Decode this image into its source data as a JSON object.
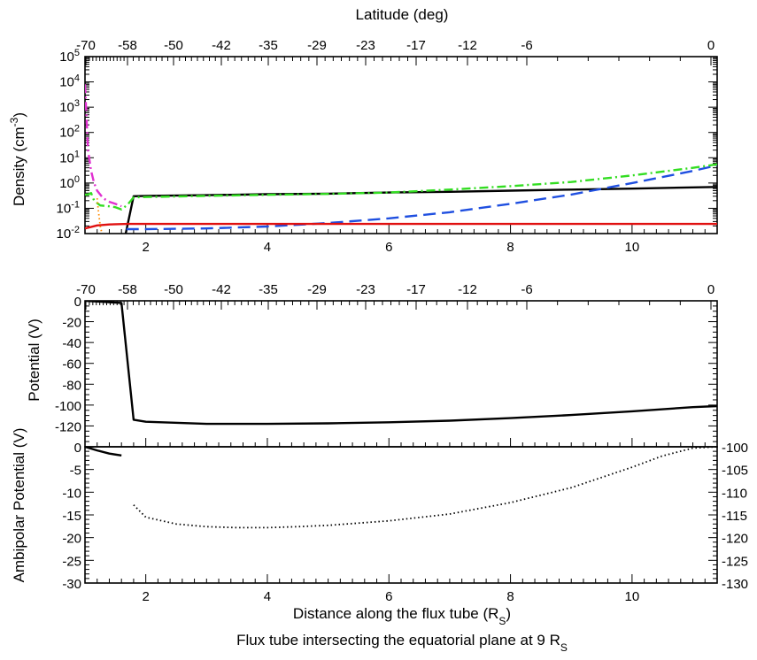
{
  "figure": {
    "top_axis_label": "Latitude (deg)",
    "bottom_axis_label": "Distance along the flux tube (R",
    "bottom_axis_label_sub": "S",
    "bottom_axis_label_end": ")",
    "caption": "Flux tube intersecting the equatorial plane at 9 R",
    "caption_sub": "S"
  },
  "chart_data": [
    {
      "type": "line",
      "panel": "density",
      "ylabel": "Density (cm",
      "ylabel_sup": "-3",
      "ylabel_end": ")",
      "yscale": "log",
      "xlim": [
        1.0,
        11.4
      ],
      "ylim": [
        0.01,
        100000
      ],
      "x_ticks": [
        "2",
        "4",
        "6",
        "8",
        "10"
      ],
      "y_ticks": [
        {
          "base": "10",
          "exp": "-2"
        },
        {
          "base": "10",
          "exp": "-1"
        },
        {
          "base": "10",
          "exp": "0"
        },
        {
          "base": "10",
          "exp": "1"
        },
        {
          "base": "10",
          "exp": "2"
        },
        {
          "base": "10",
          "exp": "3"
        },
        {
          "base": "10",
          "exp": "4"
        },
        {
          "base": "10",
          "exp": "5"
        }
      ],
      "top_ticks": [
        "-70",
        "-58",
        "-50",
        "-42",
        "-35",
        "-29",
        "-23",
        "-17",
        "-12",
        "-6",
        "0"
      ],
      "series": [
        {
          "color": "#000000",
          "dash": "solid",
          "x": [
            1.67,
            1.8,
            2.0,
            3.0,
            4.0,
            5.0,
            6.0,
            7.0,
            8.0,
            9.0,
            10.0,
            11.0,
            11.4
          ],
          "y": [
            0.01,
            0.3,
            0.31,
            0.33,
            0.36,
            0.38,
            0.42,
            0.45,
            0.5,
            0.55,
            0.6,
            0.67,
            0.7
          ]
        },
        {
          "color": "#1f4fe0",
          "dash": "dashed",
          "x": [
            1.68,
            1.8,
            2.0,
            3.0,
            4.0,
            5.0,
            6.0,
            7.0,
            8.0,
            9.0,
            10.0,
            11.0,
            11.4
          ],
          "y": [
            0.015,
            0.015,
            0.015,
            0.016,
            0.019,
            0.026,
            0.04,
            0.07,
            0.15,
            0.35,
            1.0,
            3.0,
            5.0
          ]
        },
        {
          "color": "#e01010",
          "dash": "solid",
          "x": [
            1.0,
            1.2,
            1.4,
            1.7,
            2.0,
            4.0,
            6.0,
            8.0,
            10.0,
            11.4
          ],
          "y": [
            0.016,
            0.021,
            0.023,
            0.024,
            0.024,
            0.024,
            0.024,
            0.024,
            0.024,
            0.024
          ]
        },
        {
          "color": "#33dd22",
          "dash": "dashdot",
          "x": [
            1.0,
            1.05,
            1.1,
            1.15,
            1.25,
            1.4,
            1.5,
            1.6,
            1.7,
            1.8,
            2.0,
            3.0,
            4.0,
            5.0,
            6.0,
            7.0,
            8.0,
            9.0,
            10.0,
            11.0,
            11.4
          ],
          "y": [
            0.35,
            0.35,
            0.4,
            0.2,
            0.13,
            0.12,
            0.11,
            0.09,
            0.14,
            0.27,
            0.28,
            0.31,
            0.34,
            0.37,
            0.42,
            0.55,
            0.75,
            1.1,
            2.0,
            4.0,
            5.5
          ]
        },
        {
          "color": "#e030d0",
          "dash": "dashdot",
          "x": [
            1.0,
            1.05,
            1.1,
            1.15,
            1.2,
            1.25,
            1.3,
            1.4,
            1.5,
            1.6
          ],
          "y": [
            8000,
            20,
            3,
            1.0,
            0.5,
            0.35,
            0.25,
            0.18,
            0.15,
            0.12
          ]
        },
        {
          "color": "#ff8a00",
          "dash": "dotted",
          "x": [
            1.2,
            1.22,
            1.25,
            1.28
          ],
          "y": [
            0.25,
            0.08,
            0.02,
            0.01
          ]
        }
      ]
    },
    {
      "type": "line",
      "panel": "potential",
      "ylabel": "Potential (V)",
      "xlim": [
        1.0,
        11.4
      ],
      "ylim": [
        -140,
        0
      ],
      "y_ticks": [
        "0",
        "-20",
        "-40",
        "-60",
        "-80",
        "-100",
        "-120"
      ],
      "top_ticks": [
        "-70",
        "-58",
        "-50",
        "-42",
        "-35",
        "-29",
        "-23",
        "-17",
        "-12",
        "-6",
        "0"
      ],
      "series": [
        {
          "color": "#000000",
          "dash": "solid",
          "x": [
            1.0,
            1.3,
            1.6,
            1.8,
            2.0,
            3.0,
            4.0,
            5.0,
            6.0,
            7.0,
            8.0,
            9.0,
            10.0,
            11.0,
            11.4
          ],
          "y": [
            0,
            -1,
            -2,
            -114,
            -116,
            -118,
            -118,
            -117.5,
            -116.5,
            -115,
            -112.5,
            -109.5,
            -106,
            -102,
            -101
          ]
        }
      ]
    },
    {
      "type": "line",
      "panel": "ambipolar",
      "ylabel": "Ambipolar Potential (V)",
      "xlim": [
        1.0,
        11.4
      ],
      "ylim": [
        -30,
        0
      ],
      "right_ylim": [
        -130,
        -100
      ],
      "x_ticks": [
        "2",
        "4",
        "6",
        "8",
        "10"
      ],
      "y_ticks": [
        "0",
        "-5",
        "-10",
        "-15",
        "-20",
        "-25",
        "-30"
      ],
      "right_ticks": [
        "-100",
        "-105",
        "-110",
        "-115",
        "-120",
        "-125",
        "-130"
      ],
      "series": [
        {
          "color": "#000000",
          "dash": "solid",
          "x": [
            1.0,
            1.2,
            1.4,
            1.6
          ],
          "y": [
            0,
            -0.8,
            -1.5,
            -1.9
          ]
        },
        {
          "color": "#000000",
          "dash": "dotted",
          "axis": "right",
          "x": [
            1.8,
            2.0,
            2.5,
            3.0,
            3.5,
            4.0,
            4.5,
            5.0,
            6.0,
            7.0,
            8.0,
            9.0,
            10.0,
            10.5,
            11.0,
            11.4
          ],
          "y": [
            -112.8,
            -115.5,
            -117,
            -117.6,
            -117.8,
            -117.8,
            -117.6,
            -117.3,
            -116.3,
            -114.8,
            -112.3,
            -109,
            -104.5,
            -102,
            -100.3,
            -100
          ]
        }
      ]
    }
  ]
}
